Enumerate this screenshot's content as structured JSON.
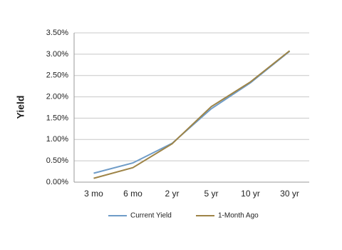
{
  "chart_data": {
    "type": "line",
    "y_label": "Yield",
    "categories": [
      "3 mo",
      "6 mo",
      "2 yr",
      "5 yr",
      "10 yr",
      "30 yr"
    ],
    "series": [
      {
        "name": "Current Yield",
        "color": "#6f9cc8",
        "values": [
          0.21,
          0.45,
          0.91,
          1.72,
          2.33,
          3.07
        ]
      },
      {
        "name": "1-Month Ago",
        "color": "#9e8447",
        "values": [
          0.09,
          0.34,
          0.9,
          1.77,
          2.35,
          3.08
        ]
      }
    ],
    "ylim": [
      0,
      3.5
    ],
    "yticks": [
      {
        "value": 0,
        "label": "0.00%"
      },
      {
        "value": 0.5,
        "label": "0.50%"
      },
      {
        "value": 1,
        "label": "1.00%"
      },
      {
        "value": 1.5,
        "label": "1.50%"
      },
      {
        "value": 2,
        "label": "2.00%"
      },
      {
        "value": 2.5,
        "label": "2.50%"
      },
      {
        "value": 3,
        "label": "3.00%"
      },
      {
        "value": 3.5,
        "label": "3.50%"
      }
    ],
    "grid": true,
    "legend": "bottom"
  }
}
